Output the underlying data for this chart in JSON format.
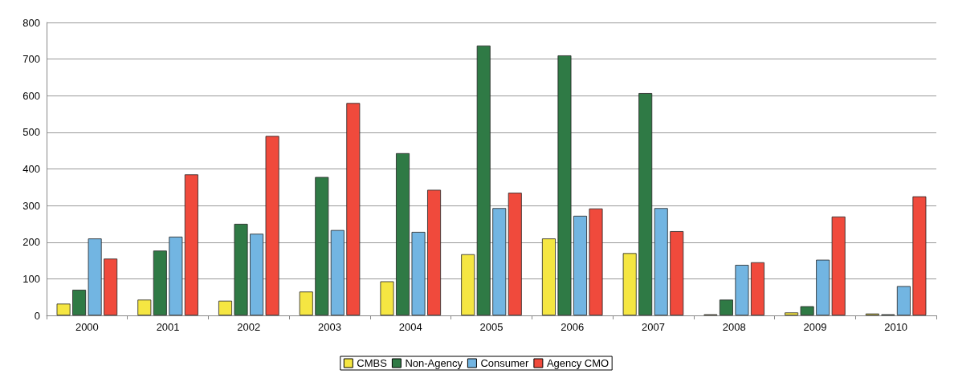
{
  "chart_data": {
    "type": "bar",
    "categories": [
      "2000",
      "2001",
      "2002",
      "2003",
      "2004",
      "2005",
      "2006",
      "2007",
      "2008",
      "2009",
      "2010"
    ],
    "series": [
      {
        "name": "CMBS",
        "color": "#f5e642",
        "values": [
          32,
          43,
          40,
          65,
          93,
          167,
          210,
          170,
          3,
          8,
          5
        ]
      },
      {
        "name": "Non-Agency",
        "color": "#2f7a45",
        "values": [
          70,
          177,
          250,
          378,
          443,
          737,
          710,
          607,
          43,
          25,
          3
        ]
      },
      {
        "name": "Consumer",
        "color": "#72b5e2",
        "values": [
          210,
          215,
          223,
          233,
          228,
          293,
          272,
          293,
          138,
          152,
          80
        ]
      },
      {
        "name": "Agency CMO",
        "color": "#f04a3c",
        "values": [
          155,
          385,
          490,
          580,
          343,
          335,
          292,
          230,
          145,
          270,
          325
        ]
      }
    ],
    "ylim": [
      0,
      800
    ],
    "yticks": [
      0,
      100,
      200,
      300,
      400,
      500,
      600,
      700,
      800
    ],
    "grid": "y",
    "legend": "bottom"
  }
}
